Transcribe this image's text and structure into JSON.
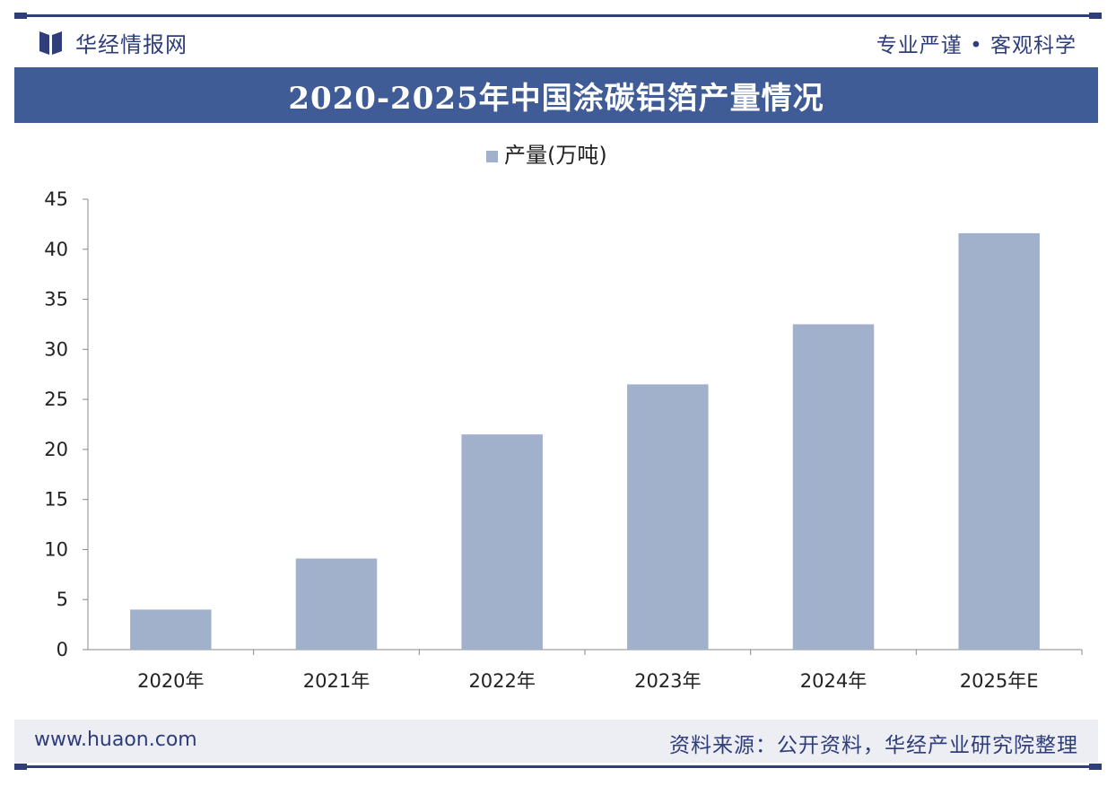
{
  "header": {
    "brand": "华经情报网",
    "slogan": "专业严谨 • 客观科学"
  },
  "title": "2020-2025年中国涂碳铝箔产量情况",
  "colors": {
    "banner": "#3f5c96",
    "bar": "#a1b0cb",
    "brand": "#2f3d7a",
    "footer_bg": "#eceef3"
  },
  "chart_data": {
    "type": "bar",
    "title": "2020-2025年中国涂碳铝箔产量情况",
    "categories": [
      "2020年",
      "2021年",
      "2022年",
      "2023年",
      "2024年",
      "2025年E"
    ],
    "series": [
      {
        "name": "产量(万吨)",
        "values": [
          4.0,
          9.1,
          21.5,
          26.5,
          32.5,
          41.6
        ]
      }
    ],
    "ylim": [
      0,
      45
    ],
    "yticks": [
      0,
      5,
      10,
      15,
      20,
      25,
      30,
      35,
      40,
      45
    ],
    "xlabel": "",
    "ylabel": "",
    "grid": false,
    "legend": "top-center"
  },
  "footer": {
    "site": "www.huaon.com",
    "source": "资料来源：公开资料，华经产业研究院整理"
  }
}
